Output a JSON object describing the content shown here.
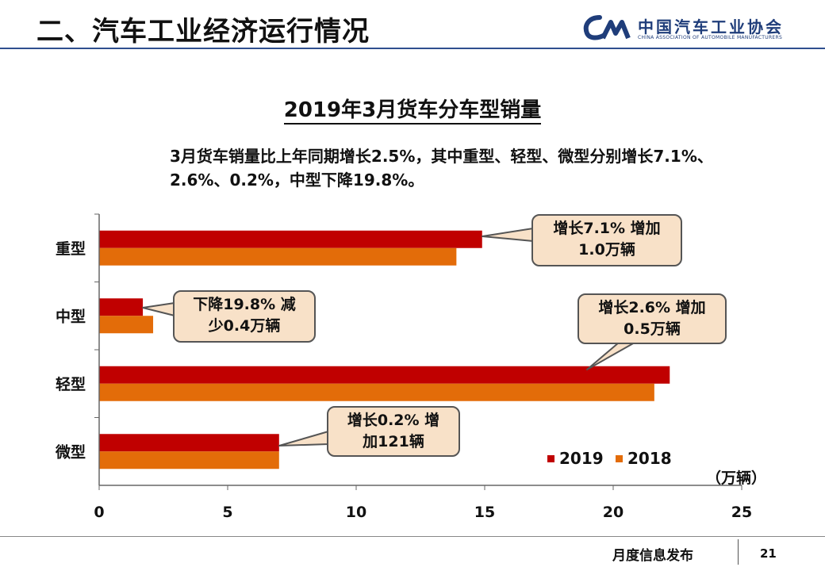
{
  "slide": {
    "section_title": "二、汽车工业经济运行情况",
    "org_name": "中国汽车工业协会",
    "org_name_en": "CHINA ASSOCIATION OF AUTOMOBILE MANUFACTURERS",
    "logo_text": "CAM",
    "footer_text": "月度信息发布",
    "page_number": "21"
  },
  "summary": "3月货车销量比上年同期增长2.5%，其中重型、轻型、微型分别增长7.1%、2.6%、0.2%，中型下降19.8%。",
  "chart_data": {
    "type": "bar",
    "orientation": "horizontal",
    "title": "2019年3月货车分车型销量",
    "unit": "（万辆）",
    "categories": [
      "重型",
      "中型",
      "轻型",
      "微型"
    ],
    "series": [
      {
        "name": "2019",
        "color": "#c00000",
        "values": [
          14.9,
          1.7,
          22.2,
          7.0
        ]
      },
      {
        "name": "2018",
        "color": "#e36c09",
        "values": [
          13.9,
          2.1,
          21.6,
          7.0
        ]
      }
    ],
    "xlim": [
      0,
      25
    ],
    "xticks": [
      "0",
      "5",
      "10",
      "15",
      "20",
      "25"
    ],
    "legend_position": "bottom-right",
    "grid": false,
    "annotations": [
      {
        "category": "重型",
        "text1": "增长7.1% 增加",
        "text2": "1.0万辆"
      },
      {
        "category": "中型",
        "text1": "下降19.8% 减",
        "text2": "少0.4万辆"
      },
      {
        "category": "轻型",
        "text1": "增长2.6% 增加",
        "text2": "0.5万辆"
      },
      {
        "category": "微型",
        "text1": "增长0.2% 增",
        "text2": "加121辆"
      }
    ]
  }
}
